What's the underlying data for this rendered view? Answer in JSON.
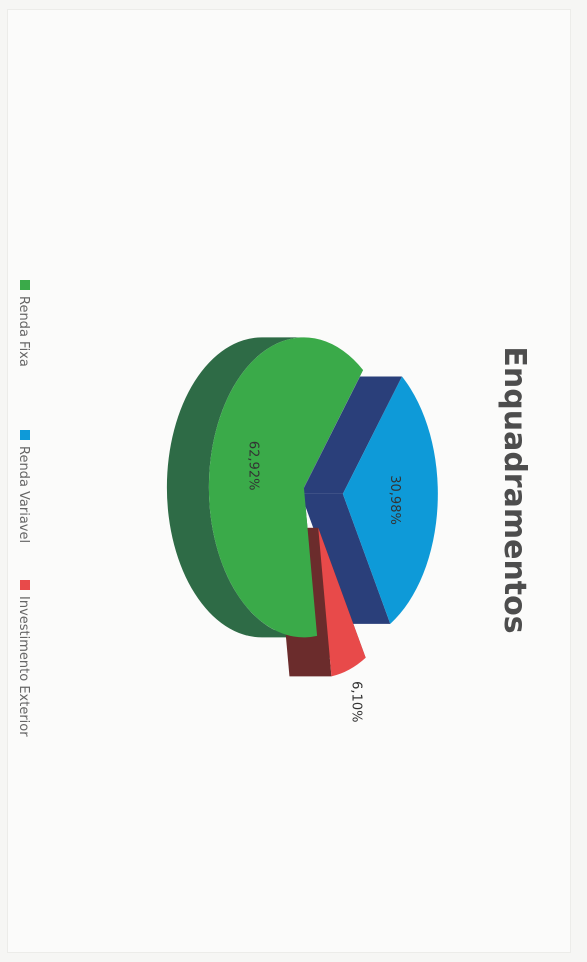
{
  "chart_data": {
    "type": "pie",
    "title": "Enquadramentos",
    "slices": [
      {
        "label": "Renda Fixa",
        "value": 62.92,
        "value_label": "62,92%",
        "color": "#3aaa49",
        "side_color": "#2e6b46"
      },
      {
        "label": "Renda Variavel",
        "value": 30.98,
        "value_label": "30,98%",
        "color": "#0e9ad8",
        "side_color": "#2a3f7a"
      },
      {
        "label": "Investimento Exterior",
        "value": 6.1,
        "value_label": "6,10%",
        "color": "#e84a4a",
        "side_color": "#6b2c2c"
      }
    ],
    "legend_position": "bottom"
  },
  "colors": {
    "background": "#fbfbfa",
    "title": "#4d4d4d"
  }
}
